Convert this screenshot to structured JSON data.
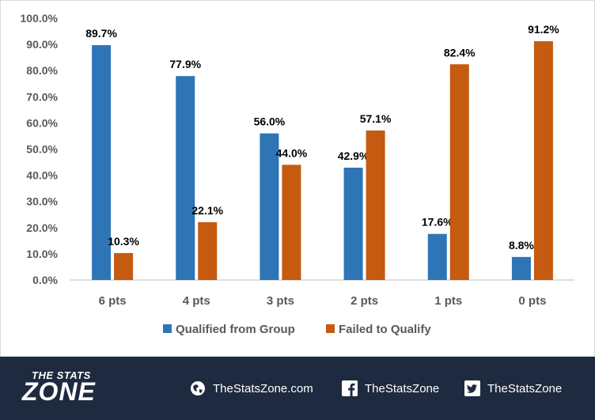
{
  "chart_data": {
    "type": "bar",
    "categories": [
      "6 pts",
      "4 pts",
      "3 pts",
      "2 pts",
      "1 pts",
      "0 pts"
    ],
    "series": [
      {
        "name": "Qualified from Group",
        "color": "#2e75b6",
        "values": [
          89.7,
          77.9,
          56.0,
          42.9,
          17.6,
          8.8
        ]
      },
      {
        "name": "Failed to Qualify",
        "color": "#c55a11",
        "values": [
          10.3,
          22.1,
          44.0,
          57.1,
          82.4,
          91.2
        ]
      }
    ],
    "ylim": [
      0,
      100
    ],
    "yticks": [
      "0.0%",
      "10.0%",
      "20.0%",
      "30.0%",
      "40.0%",
      "50.0%",
      "60.0%",
      "70.0%",
      "80.0%",
      "90.0%",
      "100.0%"
    ],
    "value_format": "percent-1dp",
    "legend_position": "bottom",
    "grid": false
  },
  "footer": {
    "logo_small": "THE STATS",
    "logo_big": "ZONE",
    "background": "#1e2a3f",
    "links": [
      {
        "icon": "globe-icon",
        "label": "TheStatsZone.com"
      },
      {
        "icon": "facebook-icon",
        "label": "TheStatsZone"
      },
      {
        "icon": "twitter-icon",
        "label": "TheStatsZone"
      }
    ]
  }
}
